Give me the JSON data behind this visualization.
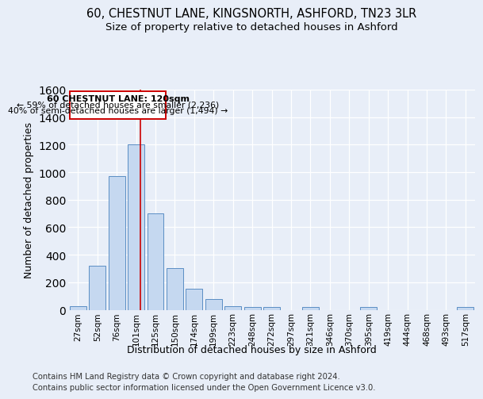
{
  "title_line1": "60, CHESTNUT LANE, KINGSNORTH, ASHFORD, TN23 3LR",
  "title_line2": "Size of property relative to detached houses in Ashford",
  "xlabel": "Distribution of detached houses by size in Ashford",
  "ylabel": "Number of detached properties",
  "bar_labels": [
    "27sqm",
    "52sqm",
    "76sqm",
    "101sqm",
    "125sqm",
    "150sqm",
    "174sqm",
    "199sqm",
    "223sqm",
    "248sqm",
    "272sqm",
    "297sqm",
    "321sqm",
    "346sqm",
    "370sqm",
    "395sqm",
    "419sqm",
    "444sqm",
    "468sqm",
    "493sqm",
    "517sqm"
  ],
  "bar_values": [
    28,
    320,
    970,
    1200,
    700,
    300,
    155,
    75,
    25,
    18,
    18,
    0,
    18,
    0,
    0,
    18,
    0,
    0,
    0,
    0,
    18
  ],
  "bar_color": "#c5d8f0",
  "bar_edgecolor": "#5b8ec4",
  "red_line_x": 3.22,
  "ylim": [
    0,
    1600
  ],
  "yticks": [
    0,
    200,
    400,
    600,
    800,
    1000,
    1200,
    1400,
    1600
  ],
  "annotation_title": "60 CHESTNUT LANE: 120sqm",
  "annotation_line1": "← 59% of detached houses are smaller (2,236)",
  "annotation_line2": "40% of semi-detached houses are larger (1,494) →",
  "footnote1": "Contains HM Land Registry data © Crown copyright and database right 2024.",
  "footnote2": "Contains public sector information licensed under the Open Government Licence v3.0.",
  "bg_color": "#e8eef8",
  "grid_color": "#d0daea",
  "title_fontsize": 10.5,
  "subtitle_fontsize": 9.5,
  "axis_label_fontsize": 9,
  "tick_fontsize": 7.5,
  "footnote_fontsize": 7.2
}
